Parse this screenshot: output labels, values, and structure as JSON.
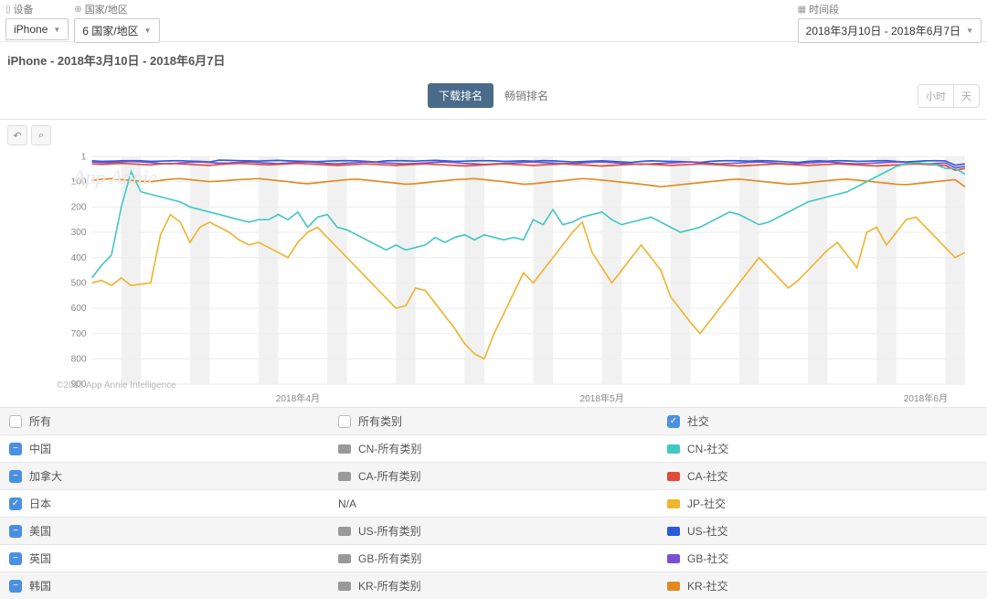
{
  "filters": {
    "device": {
      "label": "设备",
      "value": "iPhone"
    },
    "country": {
      "label": "国家/地区",
      "value": "6 国家/地区"
    },
    "period": {
      "label": "时间段",
      "value": "2018年3月10日 - 2018年6月7日"
    }
  },
  "subtitle": "iPhone - 2018年3月10日 - 2018年6月7日",
  "tabs": {
    "download": "下载排名",
    "grossing": "畅销排名"
  },
  "timegrain": {
    "hour": "小时",
    "day": "天"
  },
  "watermark": "App Annie",
  "copyright": "©2018 App Annie Intelligence",
  "chart": {
    "type": "line",
    "yticks": [
      1,
      100,
      200,
      300,
      400,
      500,
      600,
      700,
      800,
      900
    ],
    "ylim": [
      1,
      900
    ],
    "xlabels": [
      "2018年4月",
      "2018年5月",
      "2018年6月"
    ],
    "xlabel_idx": [
      21,
      52,
      85
    ],
    "n": 90,
    "band_color": "#f1f1f1",
    "grid_color": "#eeeeee",
    "series": [
      {
        "name": "US-社交",
        "color": "#2b5cd7",
        "data": [
          18,
          20,
          19,
          18,
          17,
          18,
          20,
          19,
          18,
          17,
          19,
          20,
          22,
          15,
          16,
          17,
          18,
          19,
          17,
          16,
          18,
          19,
          20,
          21,
          19,
          18,
          17,
          18,
          20,
          22,
          18,
          17,
          18,
          19,
          17,
          16,
          18,
          20,
          19,
          18,
          17,
          18,
          20,
          19,
          18,
          19,
          17,
          18,
          20,
          22,
          21,
          19,
          18,
          20,
          22,
          24,
          20,
          18,
          19,
          20,
          21,
          22,
          24,
          20,
          18,
          17,
          18,
          19,
          17,
          18,
          20,
          22,
          24,
          20,
          18,
          19,
          17,
          18,
          20,
          19,
          18,
          17,
          20,
          22,
          20,
          18,
          17,
          18,
          35,
          30
        ]
      },
      {
        "name": "GB-社交",
        "color": "#7a4fd3",
        "data": [
          22,
          25,
          24,
          22,
          20,
          22,
          25,
          28,
          30,
          26,
          24,
          22,
          25,
          27,
          26,
          24,
          22,
          25,
          27,
          29,
          26,
          24,
          22,
          25,
          28,
          30,
          27,
          25,
          22,
          24,
          26,
          28,
          30,
          28,
          26,
          24,
          22,
          25,
          28,
          30,
          32,
          30,
          28,
          26,
          24,
          22,
          25,
          27,
          29,
          28,
          26,
          24,
          22,
          25,
          28,
          30,
          32,
          30,
          28,
          26,
          24,
          22,
          25,
          28,
          30,
          28,
          26,
          24,
          22,
          25,
          28,
          30,
          28,
          26,
          24,
          22,
          25,
          28,
          30,
          28,
          26,
          24,
          22,
          25,
          28,
          30,
          28,
          26,
          45,
          40
        ]
      },
      {
        "name": "CA-社交",
        "color": "#e04b3e",
        "data": [
          30,
          32,
          30,
          28,
          30,
          32,
          34,
          30,
          28,
          30,
          32,
          34,
          36,
          32,
          30,
          28,
          30,
          32,
          34,
          32,
          30,
          28,
          30,
          32,
          34,
          36,
          34,
          32,
          30,
          32,
          34,
          36,
          34,
          32,
          30,
          32,
          34,
          36,
          38,
          36,
          34,
          32,
          30,
          32,
          34,
          36,
          34,
          32,
          30,
          32,
          34,
          36,
          38,
          36,
          34,
          32,
          30,
          32,
          34,
          36,
          34,
          32,
          30,
          32,
          34,
          36,
          38,
          36,
          34,
          32,
          30,
          32,
          34,
          36,
          34,
          32,
          30,
          32,
          34,
          36,
          38,
          36,
          34,
          32,
          30,
          32,
          34,
          36,
          55,
          48
        ]
      },
      {
        "name": "KR-社交",
        "color": "#e08b1f",
        "data": [
          95,
          90,
          88,
          92,
          95,
          98,
          100,
          95,
          90,
          88,
          92,
          96,
          100,
          98,
          95,
          92,
          90,
          88,
          92,
          96,
          100,
          105,
          108,
          104,
          100,
          96,
          92,
          90,
          94,
          98,
          102,
          106,
          110,
          108,
          104,
          100,
          96,
          92,
          90,
          88,
          92,
          96,
          100,
          105,
          110,
          108,
          104,
          100,
          96,
          92,
          88,
          90,
          94,
          98,
          102,
          106,
          110,
          115,
          120,
          116,
          112,
          108,
          104,
          100,
          96,
          92,
          90,
          94,
          98,
          102,
          106,
          110,
          108,
          104,
          100,
          96,
          92,
          90,
          94,
          98,
          102,
          106,
          110,
          112,
          108,
          104,
          100,
          96,
          92,
          120
        ]
      },
      {
        "name": "CN-社交",
        "color": "#42c8c2",
        "data": [
          480,
          430,
          390,
          200,
          60,
          140,
          150,
          160,
          170,
          180,
          200,
          210,
          220,
          230,
          240,
          250,
          260,
          250,
          250,
          230,
          250,
          220,
          280,
          240,
          230,
          280,
          290,
          310,
          330,
          350,
          370,
          350,
          370,
          360,
          350,
          320,
          340,
          320,
          310,
          330,
          310,
          320,
          330,
          320,
          330,
          250,
          270,
          210,
          270,
          260,
          240,
          230,
          220,
          250,
          270,
          260,
          250,
          240,
          260,
          280,
          300,
          290,
          280,
          260,
          240,
          220,
          230,
          250,
          270,
          260,
          240,
          220,
          200,
          180,
          170,
          160,
          150,
          140,
          120,
          100,
          80,
          60,
          40,
          30,
          25,
          28,
          32,
          48,
          48,
          70
        ]
      },
      {
        "name": "JP-社交",
        "color": "#f0b42f",
        "data": [
          500,
          490,
          510,
          480,
          510,
          505,
          500,
          310,
          230,
          260,
          340,
          280,
          260,
          280,
          300,
          330,
          350,
          340,
          360,
          380,
          400,
          340,
          300,
          280,
          320,
          360,
          400,
          440,
          480,
          520,
          560,
          600,
          590,
          520,
          530,
          580,
          630,
          680,
          740,
          780,
          800,
          700,
          620,
          540,
          460,
          500,
          450,
          400,
          350,
          300,
          260,
          380,
          440,
          500,
          450,
          400,
          350,
          400,
          450,
          555,
          605,
          655,
          700,
          650,
          600,
          550,
          500,
          450,
          400,
          440,
          480,
          520,
          490,
          450,
          410,
          370,
          340,
          390,
          440,
          300,
          280,
          350,
          300,
          250,
          240,
          280,
          320,
          360,
          400,
          380
        ]
      }
    ]
  },
  "legend": {
    "header": {
      "all": "所有",
      "all_cat": "所有类别",
      "social": "社交"
    },
    "rows": [
      {
        "country": "中国",
        "cat": "CN-所有类别",
        "cat_color": "#999999",
        "soc": "CN-社交",
        "soc_color": "#42c8c2",
        "chk": "minus"
      },
      {
        "country": "加拿大",
        "cat": "CA-所有类别",
        "cat_color": "#999999",
        "soc": "CA-社交",
        "soc_color": "#e04b3e",
        "chk": "minus"
      },
      {
        "country": "日本",
        "cat": "N/A",
        "cat_color": "",
        "soc": "JP-社交",
        "soc_color": "#f0b42f",
        "chk": "check"
      },
      {
        "country": "美国",
        "cat": "US-所有类别",
        "cat_color": "#999999",
        "soc": "US-社交",
        "soc_color": "#2b5cd7",
        "chk": "minus"
      },
      {
        "country": "英国",
        "cat": "GB-所有类别",
        "cat_color": "#999999",
        "soc": "GB-社交",
        "soc_color": "#7a4fd3",
        "chk": "minus"
      },
      {
        "country": "韩国",
        "cat": "KR-所有类别",
        "cat_color": "#999999",
        "soc": "KR-社交",
        "soc_color": "#e08b1f",
        "chk": "minus"
      }
    ]
  }
}
